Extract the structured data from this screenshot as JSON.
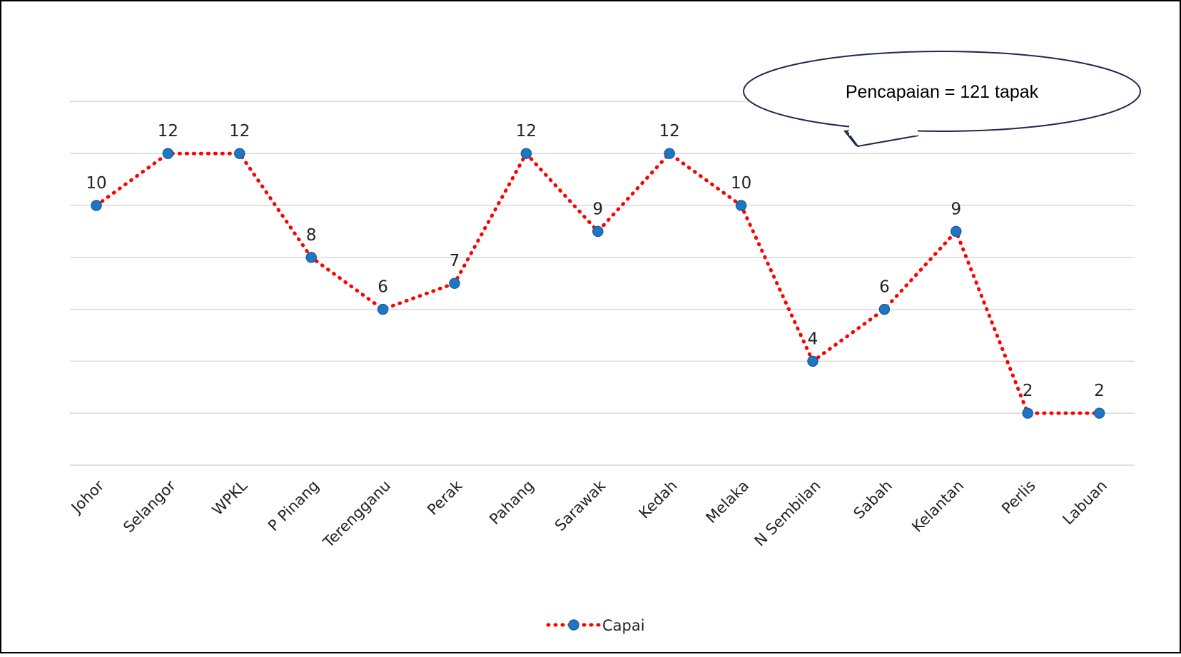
{
  "chart_data": {
    "type": "line",
    "categories": [
      "Johor",
      "Selangor",
      "WPKL",
      "P Pinang",
      "Terengganu",
      "Perak",
      "Pahang",
      "Sarawak",
      "Kedah",
      "Melaka",
      "N Sembilan",
      "Sabah",
      "Kelantan",
      "Perlis",
      "Labuan"
    ],
    "series": [
      {
        "name": "Capai",
        "values": [
          10,
          12,
          12,
          8,
          6,
          7,
          12,
          9,
          12,
          10,
          4,
          6,
          9,
          2,
          2
        ],
        "line_color": "#ff0000",
        "marker_color": "#1f77c4",
        "line_style": "dotted"
      }
    ],
    "title": "",
    "xlabel": "",
    "ylabel": "",
    "ylim": [
      0,
      14
    ],
    "y_gridline_step": 2,
    "y_tick_labels_shown": false,
    "grid": true,
    "data_labels": true,
    "legend": {
      "position": "bottom",
      "entries": [
        "Capai"
      ]
    },
    "annotations": [
      {
        "text": "Pencapaian = 121 tapak",
        "shape": "callout-ellipse",
        "position": "top-right"
      }
    ]
  },
  "style": {
    "gridline_color": "#d9d9d9",
    "frame_color": "#000000"
  }
}
